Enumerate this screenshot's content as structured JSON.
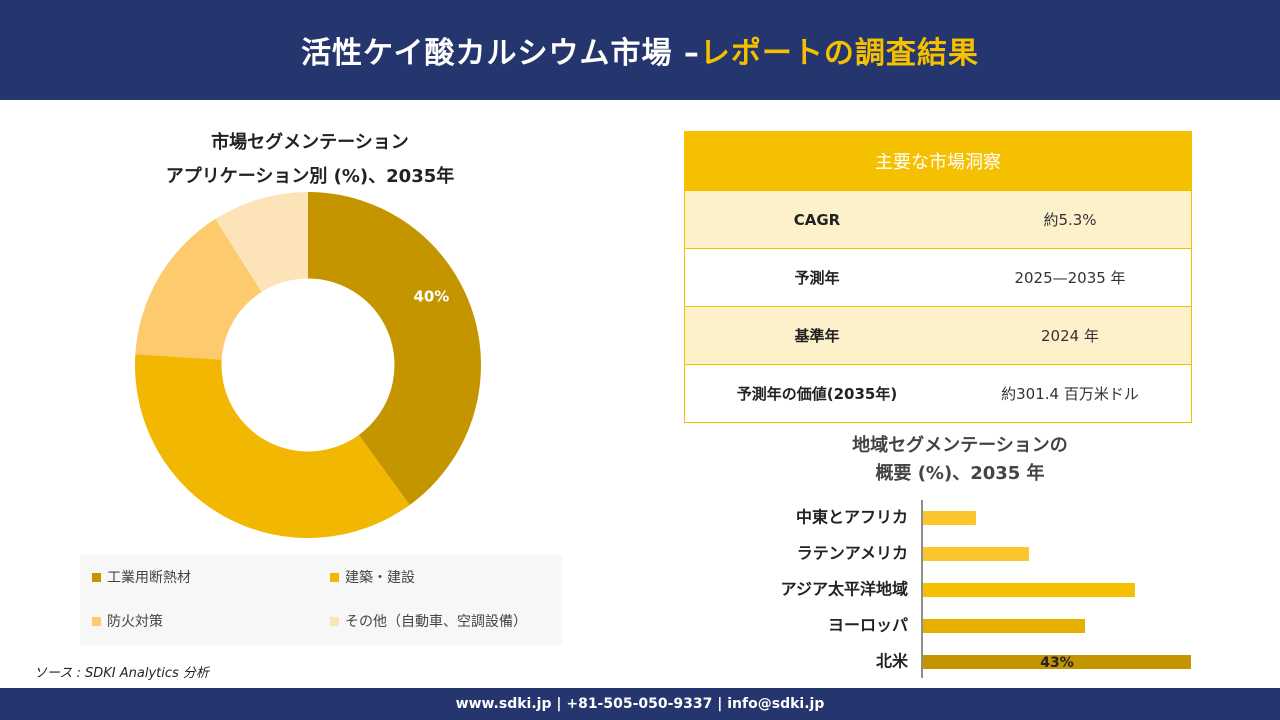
{
  "header": {
    "title_part1": "活性ケイ酸カルシウム市場 –",
    "title_part2": "レポートの調査結果"
  },
  "footer": {
    "contact": "www.sdki.jp | +81-505-050-9337 | info@sdki.jp"
  },
  "source": "ソース : SDKI Analytics 分析",
  "key_insights": {
    "header": "主要な市場洞察",
    "rows": [
      {
        "label": "CAGR",
        "value": "約5.3%"
      },
      {
        "label": "予測年",
        "value": "2025—2035 年"
      },
      {
        "label": "基準年",
        "value": "2024 年"
      },
      {
        "label": "予測年の価値(2035年)",
        "value": "約301.4 百万米ドル"
      }
    ]
  },
  "chart_data": [
    {
      "type": "pie",
      "title_line1": "市場セグメンテーション",
      "title_line2": "アプリケーション別 (%)、2035年",
      "categories": [
        "工業用断熱材",
        "建築・建設",
        "防火対策",
        "その他（自動車、空調設備）"
      ],
      "values": [
        40,
        36,
        15,
        9
      ],
      "colors": [
        "#c59500",
        "#f2b700",
        "#fdcb6e",
        "#fde3b8"
      ],
      "data_labels": [
        "40%",
        "",
        "",
        ""
      ],
      "inner_radius_ratio": 0.5,
      "legend_position": "bottom"
    },
    {
      "type": "bar",
      "orientation": "horizontal",
      "title_line1": "地域セグメンテーションの",
      "title_line2": "概要 (%)、2035 年",
      "categories": [
        "中東とアフリカ",
        "ラテンアメリカ",
        "アジア太平洋地域",
        "ヨーロッパ",
        "北米"
      ],
      "values": [
        8.5,
        17,
        34,
        26,
        43
      ],
      "colors": [
        "#fbc52b",
        "#fbc52b",
        "#f5c000",
        "#e6b000",
        "#c59500"
      ],
      "data_labels": [
        "",
        "",
        "",
        "",
        "43%"
      ],
      "xlim": [
        0,
        43
      ]
    }
  ]
}
